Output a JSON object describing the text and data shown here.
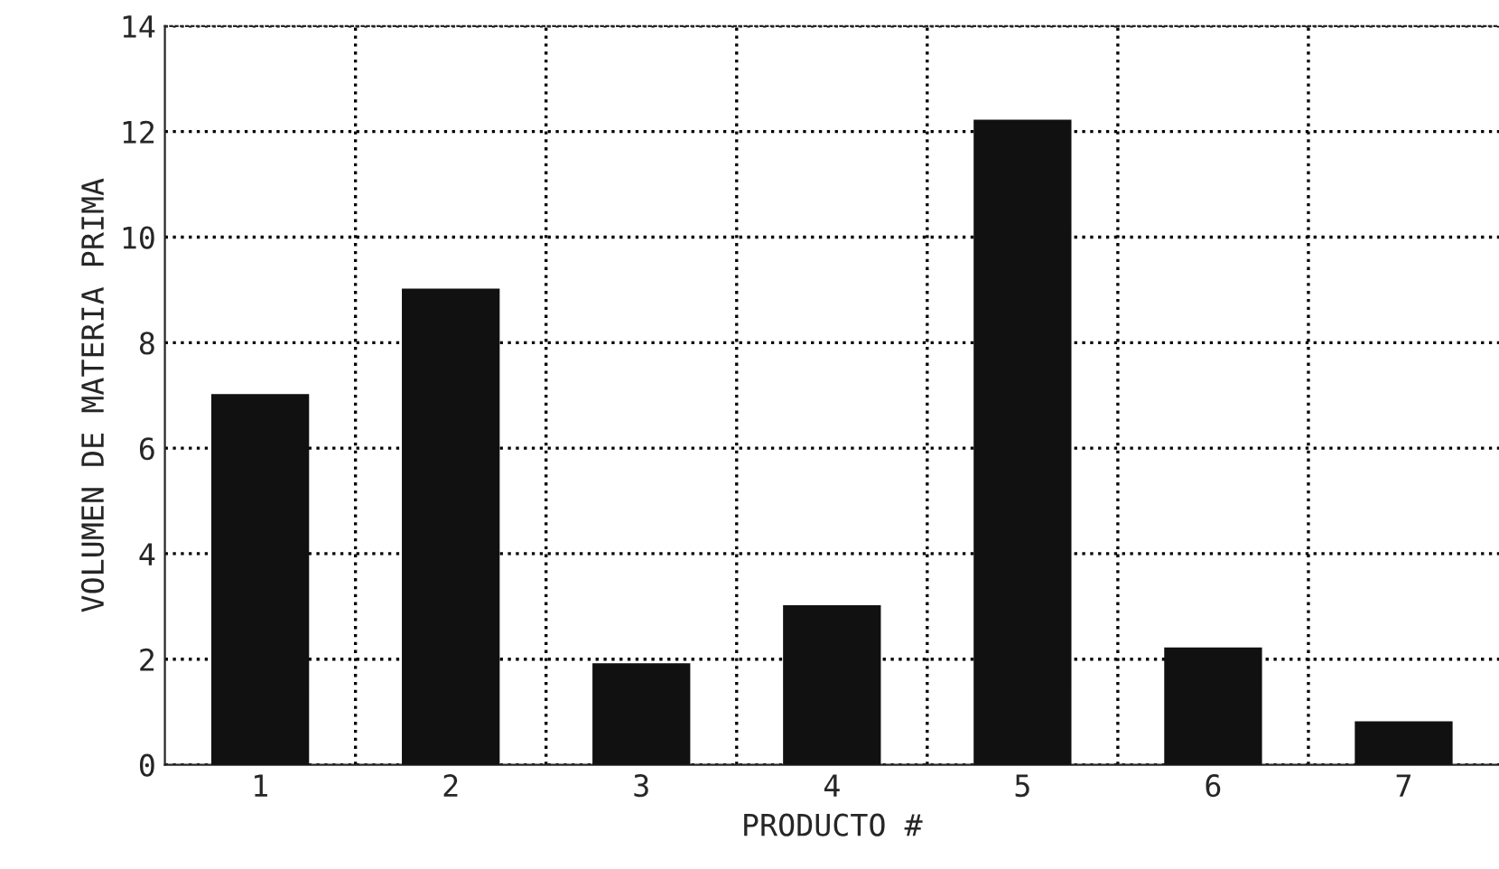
{
  "chart_data": {
    "type": "bar",
    "xlabel": "PRODUCTO #",
    "ylabel": "VOLUMEN DE MATERIA PRIMA",
    "categories": [
      "1",
      "2",
      "3",
      "4",
      "5",
      "6",
      "7"
    ],
    "values": [
      7.0,
      9.0,
      1.9,
      3.0,
      12.2,
      2.2,
      0.8
    ],
    "color": "#111111",
    "ylim": [
      0,
      14
    ],
    "yticks": [
      0,
      2,
      4,
      6,
      8,
      10,
      12,
      14
    ],
    "grid": true
  }
}
